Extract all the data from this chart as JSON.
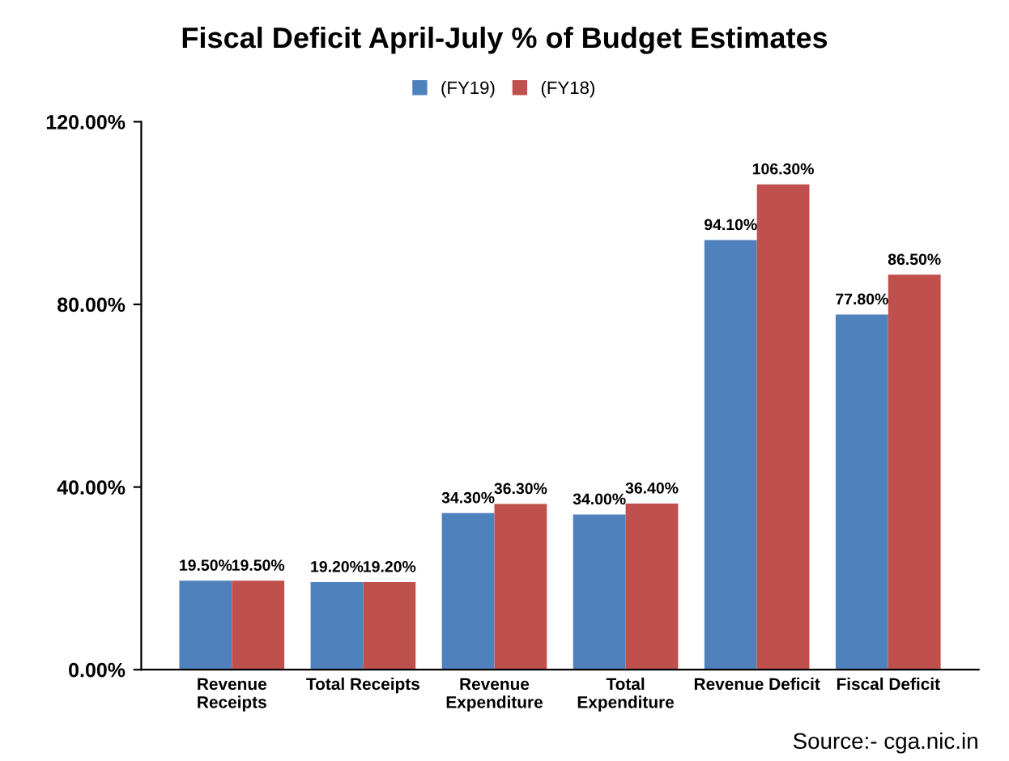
{
  "chart_data": {
    "type": "bar",
    "title": "Fiscal Deficit April-July % of Budget Estimates",
    "categories": [
      "Revenue\nReceipts",
      "Total Receipts",
      "Revenue\nExpenditure",
      "Total\nExpenditure",
      "Revenue Deficit",
      "Fiscal Deficit"
    ],
    "series": [
      {
        "name": "(FY19)",
        "color": "#4f81bd",
        "values": [
          19.5,
          19.2,
          34.3,
          34.0,
          94.1,
          77.8
        ],
        "value_labels": [
          "19.50%",
          "19.20%",
          "34.30%",
          "34.00%",
          "94.10%",
          "77.80%"
        ]
      },
      {
        "name": "(FY18)",
        "color": "#c0504d",
        "values": [
          19.5,
          19.2,
          36.3,
          36.4,
          106.3,
          86.5
        ],
        "value_labels": [
          "19.50%",
          "19.20%",
          "36.30%",
          "36.40%",
          "106.30%",
          "86.50%"
        ]
      }
    ],
    "ylim": [
      0,
      120
    ],
    "yticks": [
      {
        "value": 0,
        "label": "0.00%"
      },
      {
        "value": 40,
        "label": "40.00%"
      },
      {
        "value": 80,
        "label": "80.00%"
      },
      {
        "value": 120,
        "label": "120.00%"
      }
    ],
    "grid": false,
    "legend": "top",
    "annotations": [
      "Source:- cga.nic.in"
    ]
  }
}
